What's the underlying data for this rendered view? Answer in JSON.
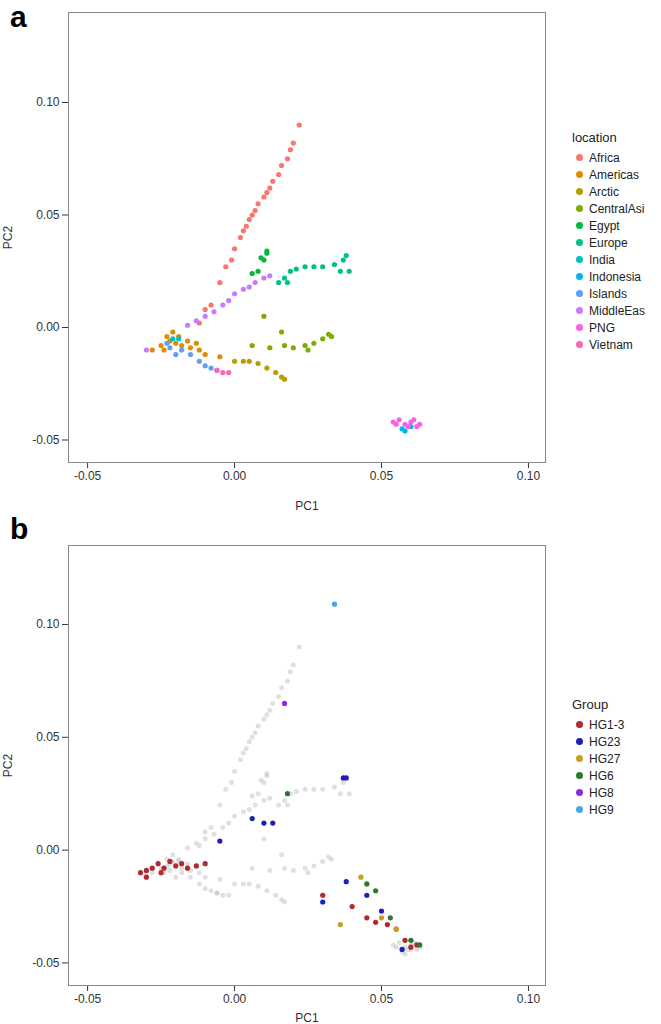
{
  "chart_data": [
    {
      "type": "scatter",
      "title": "a",
      "x_label": "PC1",
      "y_label": "PC2",
      "legend_title": "location",
      "legend": "right",
      "grid": false,
      "xlim": [
        -0.0565,
        0.1058
      ],
      "ylim": [
        -0.06,
        0.14
      ],
      "xticks": [
        {
          "value": -0.05,
          "label": "-0.05"
        },
        {
          "value": 0,
          "label": "0.00"
        },
        {
          "value": 0.05,
          "label": "0.05"
        },
        {
          "value": 0.1,
          "label": "0.10"
        }
      ],
      "yticks": [
        {
          "value": -0.05,
          "label": "-0.05"
        },
        {
          "value": 0,
          "label": "0.00"
        },
        {
          "value": 0.05,
          "label": "0.05"
        },
        {
          "value": 0.1,
          "label": "0.10"
        }
      ],
      "series": [
        {
          "name": "Africa",
          "color": "#F8766D",
          "values": [
            [
              -0.012,
              0.002
            ],
            [
              -0.01,
              0.008
            ],
            [
              -0.008,
              0.01
            ],
            [
              -0.005,
              0.02
            ],
            [
              -0.003,
              0.027
            ],
            [
              -0.001,
              0.03
            ],
            [
              0.0,
              0.035
            ],
            [
              0.002,
              0.04
            ],
            [
              0.003,
              0.043
            ],
            [
              0.004,
              0.045
            ],
            [
              0.005,
              0.048
            ],
            [
              0.006,
              0.05
            ],
            [
              0.007,
              0.052
            ],
            [
              0.008,
              0.055
            ],
            [
              0.01,
              0.058
            ],
            [
              0.011,
              0.06
            ],
            [
              0.012,
              0.062
            ],
            [
              0.013,
              0.065
            ],
            [
              0.015,
              0.068
            ],
            [
              0.016,
              0.072
            ],
            [
              0.018,
              0.075
            ],
            [
              0.019,
              0.079
            ],
            [
              0.02,
              0.082
            ],
            [
              0.022,
              0.09
            ]
          ]
        },
        {
          "name": "Americas",
          "color": "#DE8C00",
          "values": [
            [
              -0.028,
              -0.01
            ],
            [
              -0.025,
              -0.008
            ],
            [
              -0.022,
              -0.006
            ],
            [
              -0.02,
              -0.007
            ],
            [
              -0.018,
              -0.008
            ],
            [
              -0.015,
              -0.009
            ],
            [
              -0.012,
              -0.01
            ],
            [
              -0.01,
              -0.012
            ],
            [
              -0.005,
              -0.013
            ],
            [
              -0.023,
              -0.004
            ],
            [
              -0.021,
              -0.002
            ],
            [
              -0.024,
              -0.01
            ],
            [
              -0.019,
              -0.004
            ],
            [
              -0.016,
              -0.006
            ],
            [
              -0.013,
              -0.007
            ]
          ]
        },
        {
          "name": "Arctic",
          "color": "#B79F00",
          "values": [
            [
              0.0,
              -0.015
            ],
            [
              0.003,
              -0.015
            ],
            [
              0.005,
              -0.015
            ],
            [
              0.008,
              -0.016
            ],
            [
              0.011,
              -0.018
            ],
            [
              0.014,
              -0.02
            ],
            [
              0.016,
              -0.022
            ],
            [
              0.017,
              -0.023
            ]
          ]
        },
        {
          "name": "CentralAsi",
          "color": "#7CAE00",
          "values": [
            [
              0.01,
              0.005
            ],
            [
              0.016,
              -0.002
            ],
            [
              0.017,
              -0.008
            ],
            [
              0.02,
              -0.009
            ],
            [
              0.024,
              -0.008
            ],
            [
              0.027,
              -0.007
            ],
            [
              0.03,
              -0.005
            ],
            [
              0.032,
              -0.003
            ],
            [
              0.033,
              -0.004
            ],
            [
              0.012,
              -0.009
            ],
            [
              0.006,
              -0.008
            ],
            [
              0.025,
              -0.01
            ]
          ]
        },
        {
          "name": "Egypt",
          "color": "#00BA38",
          "values": [
            [
              0.006,
              0.024
            ],
            [
              0.008,
              0.025
            ],
            [
              0.009,
              0.031
            ],
            [
              0.01,
              0.03
            ],
            [
              0.011,
              0.033
            ],
            [
              0.011,
              0.034
            ]
          ]
        },
        {
          "name": "Europe",
          "color": "#00C08B",
          "values": [
            [
              0.015,
              0.02
            ],
            [
              0.017,
              0.022
            ],
            [
              0.018,
              0.02
            ],
            [
              0.019,
              0.025
            ],
            [
              0.021,
              0.026
            ],
            [
              0.024,
              0.027
            ],
            [
              0.027,
              0.027
            ],
            [
              0.03,
              0.027
            ],
            [
              0.034,
              0.028
            ],
            [
              0.036,
              0.025
            ],
            [
              0.037,
              0.03
            ],
            [
              0.038,
              0.032
            ],
            [
              0.039,
              0.025
            ]
          ]
        },
        {
          "name": "India",
          "color": "#00BFC4",
          "values": [
            [
              -0.021,
              -0.005
            ],
            [
              -0.019,
              -0.005
            ]
          ]
        },
        {
          "name": "Indonesia",
          "color": "#00B4F0",
          "values": [
            [
              0.057,
              -0.045
            ],
            [
              0.058,
              -0.046
            ],
            [
              0.06,
              -0.044
            ]
          ]
        },
        {
          "name": "Islands",
          "color": "#619CFF",
          "values": [
            [
              -0.023,
              -0.007
            ],
            [
              -0.022,
              -0.009
            ],
            [
              -0.02,
              -0.012
            ],
            [
              -0.018,
              -0.01
            ],
            [
              -0.015,
              -0.012
            ],
            [
              -0.012,
              -0.015
            ],
            [
              -0.01,
              -0.017
            ],
            [
              -0.008,
              -0.018
            ],
            [
              -0.006,
              -0.019
            ]
          ]
        },
        {
          "name": "MiddleEas",
          "color": "#C77CFF",
          "values": [
            [
              -0.03,
              -0.01
            ],
            [
              -0.016,
              0.001
            ],
            [
              -0.013,
              0.003
            ],
            [
              -0.01,
              0.005
            ],
            [
              -0.007,
              0.007
            ],
            [
              -0.004,
              0.01
            ],
            [
              -0.002,
              0.012
            ],
            [
              0.0,
              0.015
            ],
            [
              0.003,
              0.017
            ],
            [
              0.005,
              0.018
            ],
            [
              0.007,
              0.02
            ],
            [
              0.01,
              0.022
            ],
            [
              0.012,
              0.023
            ]
          ]
        },
        {
          "name": "PNG",
          "color": "#F564E3",
          "values": [
            [
              0.054,
              -0.042
            ],
            [
              0.055,
              -0.043
            ],
            [
              0.056,
              -0.041
            ],
            [
              0.058,
              -0.043
            ],
            [
              0.059,
              -0.044
            ],
            [
              0.06,
              -0.042
            ],
            [
              0.061,
              -0.041
            ],
            [
              0.062,
              -0.044
            ],
            [
              0.063,
              -0.043
            ]
          ]
        },
        {
          "name": "Vietnam",
          "color": "#FF64B0",
          "values": [
            [
              -0.006,
              -0.019
            ],
            [
              -0.004,
              -0.02
            ],
            [
              -0.002,
              -0.02
            ]
          ]
        }
      ]
    },
    {
      "type": "scatter",
      "title": "b",
      "x_label": "PC1",
      "y_label": "PC2",
      "legend_title": "Group",
      "legend": "right",
      "grid": false,
      "xlim": [
        -0.0565,
        0.1058
      ],
      "ylim": [
        -0.06,
        0.135
      ],
      "xticks": [
        {
          "value": -0.05,
          "label": "-0.05"
        },
        {
          "value": 0,
          "label": "0.00"
        },
        {
          "value": 0.05,
          "label": "0.05"
        },
        {
          "value": 0.1,
          "label": "0.10"
        }
      ],
      "yticks": [
        {
          "value": -0.05,
          "label": "-0.05"
        },
        {
          "value": 0,
          "label": "0.00"
        },
        {
          "value": 0.05,
          "label": "0.05"
        },
        {
          "value": 0.1,
          "label": "0.10"
        }
      ],
      "series": [
        {
          "name": "HG1-3",
          "color": "#B2292E",
          "values": [
            [
              -0.032,
              -0.01
            ],
            [
              -0.03,
              -0.012
            ],
            [
              -0.03,
              -0.009
            ],
            [
              -0.028,
              -0.008
            ],
            [
              -0.026,
              -0.006
            ],
            [
              -0.025,
              -0.01
            ],
            [
              -0.024,
              -0.008
            ],
            [
              -0.022,
              -0.005
            ],
            [
              -0.02,
              -0.007
            ],
            [
              -0.018,
              -0.006
            ],
            [
              -0.016,
              -0.008
            ],
            [
              -0.013,
              -0.007
            ],
            [
              -0.01,
              -0.006
            ],
            [
              0.03,
              -0.02
            ],
            [
              0.04,
              -0.025
            ],
            [
              0.045,
              -0.03
            ],
            [
              0.048,
              -0.032
            ],
            [
              0.052,
              -0.033
            ],
            [
              0.055,
              -0.035
            ],
            [
              0.058,
              -0.04
            ],
            [
              0.06,
              -0.043
            ],
            [
              0.062,
              -0.042
            ]
          ]
        },
        {
          "name": "HG23",
          "color": "#1F1FB4",
          "values": [
            [
              -0.005,
              0.004
            ],
            [
              0.006,
              0.014
            ],
            [
              0.01,
              0.012
            ],
            [
              0.013,
              0.012
            ],
            [
              0.037,
              0.032
            ],
            [
              0.038,
              0.032
            ],
            [
              0.03,
              -0.023
            ],
            [
              0.038,
              -0.014
            ],
            [
              0.045,
              -0.02
            ],
            [
              0.05,
              -0.027
            ],
            [
              0.057,
              -0.044
            ]
          ]
        },
        {
          "name": "HG27",
          "color": "#C8A020",
          "values": [
            [
              0.036,
              -0.033
            ],
            [
              0.043,
              -0.012
            ],
            [
              0.05,
              -0.03
            ],
            [
              0.055,
              -0.035
            ]
          ]
        },
        {
          "name": "HG6",
          "color": "#2A7A2A",
          "values": [
            [
              0.018,
              0.025
            ],
            [
              0.045,
              -0.015
            ],
            [
              0.048,
              -0.018
            ],
            [
              0.053,
              -0.03
            ],
            [
              0.06,
              -0.04
            ],
            [
              0.063,
              -0.042
            ]
          ]
        },
        {
          "name": "HG8",
          "color": "#8A2BE2",
          "values": [
            [
              0.017,
              0.065
            ]
          ]
        },
        {
          "name": "HG9",
          "color": "#4AA8E0",
          "values": [
            [
              0.034,
              0.109
            ]
          ]
        }
      ]
    }
  ]
}
